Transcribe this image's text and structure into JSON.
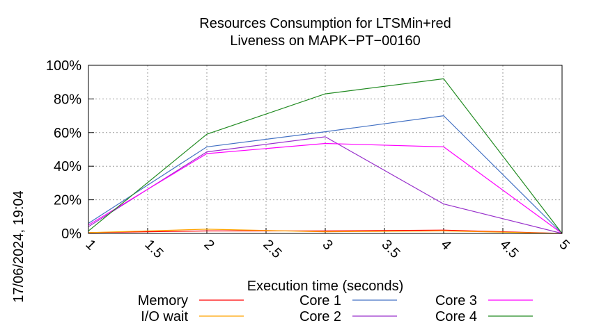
{
  "chart_data": {
    "type": "line",
    "title": "Resources Consumption for LTSMin+red",
    "subtitle": "Liveness on MAPK−PT−00160",
    "xlabel": "Execution time (seconds)",
    "ylabel": "",
    "side_label": "17/06/2024, 19:04",
    "xlim": [
      1,
      5
    ],
    "ylim": [
      0,
      100
    ],
    "x_ticks": [
      1,
      1.5,
      2,
      2.5,
      3,
      3.5,
      4,
      4.5,
      5
    ],
    "x_tick_labels": [
      "1",
      "1.5",
      "2",
      "2.5",
      "3",
      "3.5",
      "4",
      "4.5",
      "5"
    ],
    "y_ticks": [
      0,
      20,
      40,
      60,
      80,
      100
    ],
    "y_tick_labels": [
      "0%",
      "20%",
      "40%",
      "60%",
      "80%",
      "100%"
    ],
    "grid": true,
    "legend_position": "bottom",
    "x": [
      1,
      2,
      3,
      4,
      5
    ],
    "series": [
      {
        "name": "Memory",
        "color": "#ff0000",
        "values": [
          0.5,
          1.5,
          1.5,
          2,
          0
        ]
      },
      {
        "name": "I/O wait",
        "color": "#ffa500",
        "values": [
          0.5,
          2.5,
          1,
          1.5,
          0
        ]
      },
      {
        "name": "Core 1",
        "color": "#4472c4",
        "values": [
          6,
          51.5,
          60.5,
          70,
          0
        ]
      },
      {
        "name": "Core 2",
        "color": "#9932cc",
        "values": [
          4,
          48.5,
          57.5,
          17.5,
          0
        ]
      },
      {
        "name": "Core 3",
        "color": "#ff00ff",
        "values": [
          5,
          47.5,
          53.5,
          51.5,
          0
        ]
      },
      {
        "name": "Core 4",
        "color": "#228b22",
        "values": [
          1.5,
          59,
          83,
          92,
          0
        ]
      }
    ]
  }
}
